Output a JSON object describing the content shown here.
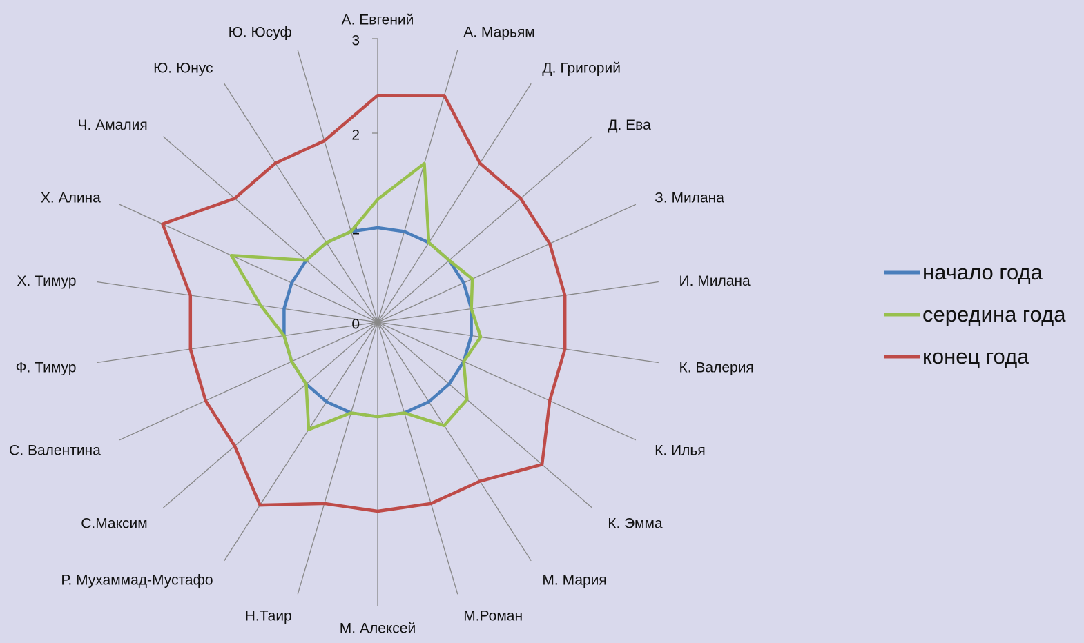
{
  "chart_data": {
    "type": "radar",
    "categories": [
      "А. Евгений",
      "А. Марьям",
      "Д. Григорий",
      "Д. Ева",
      "З. Милана",
      "И. Милана",
      "К. Валерия",
      "К. Илья",
      "К. Эмма",
      "М. Мария",
      "М.Роман",
      "М. Алексей",
      "Н.Таир",
      "Р. Мухаммад-Мустафо",
      "С.Максим",
      "С. Валентина",
      "Ф. Тимур",
      "Х. Тимур",
      "Х. Алина",
      "Ч. Амалия",
      "Ю. Юнус",
      "Ю. Юсуф"
    ],
    "series": [
      {
        "name": "начало года",
        "color": "#4a7ebb",
        "values": [
          1,
          1,
          1,
          1,
          1,
          1,
          1,
          1,
          1,
          1,
          1,
          1,
          1,
          1,
          1,
          1,
          1,
          1,
          1,
          1,
          1,
          1
        ]
      },
      {
        "name": "середина года",
        "color": "#98c04e",
        "values": [
          1.3,
          1.75,
          1,
          1,
          1.1,
          1,
          1.1,
          1,
          1.25,
          1.3,
          1,
          1,
          1,
          1.35,
          1,
          1,
          1,
          1.25,
          1.7,
          1,
          1,
          1
        ]
      },
      {
        "name": "конец года",
        "color": "#be4b48",
        "values": [
          2.4,
          2.5,
          2,
          2,
          2,
          2,
          2,
          2,
          2.3,
          2,
          2,
          2,
          2,
          2.3,
          2,
          2,
          2,
          2,
          2.5,
          2,
          2,
          2
        ]
      }
    ],
    "ylim": [
      0,
      3
    ],
    "yticks": [
      0,
      1,
      2,
      3
    ],
    "legend": "right"
  }
}
